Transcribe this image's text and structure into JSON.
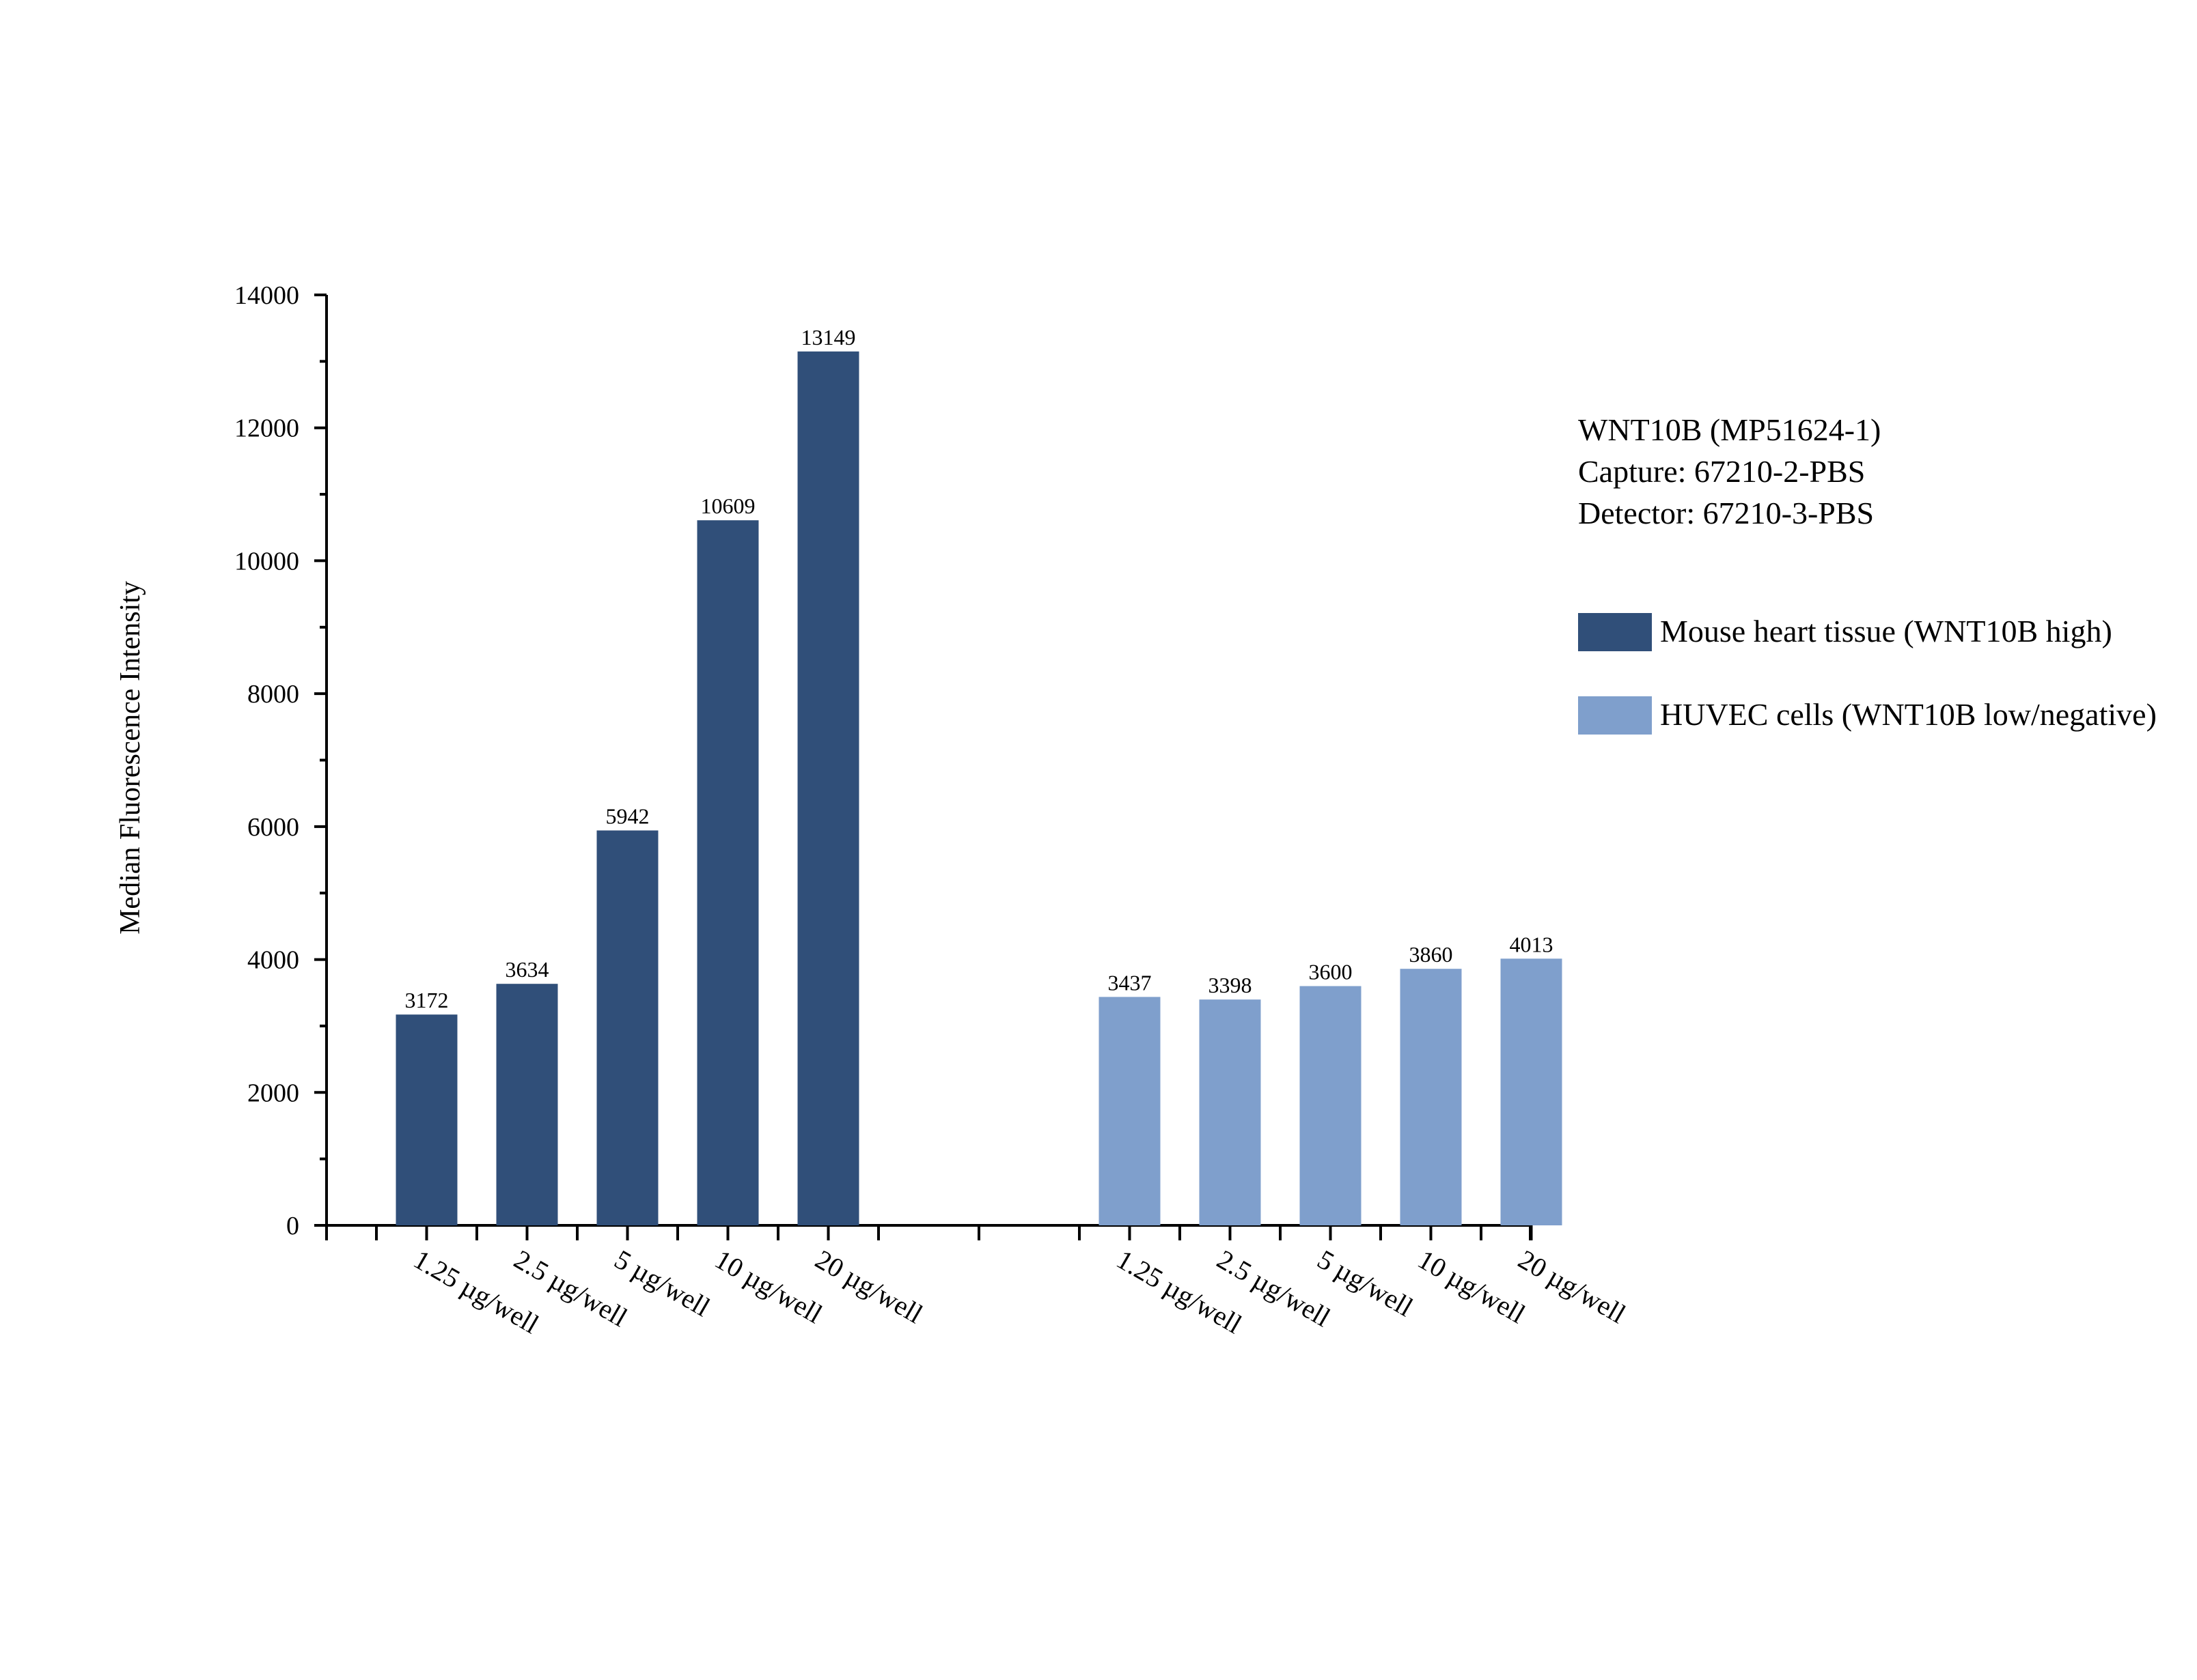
{
  "chart_data": {
    "type": "bar",
    "ylabel": "Median Fluorescence Intensity",
    "xlabel": "",
    "ylim": [
      0,
      14000
    ],
    "y_ticks": [
      0,
      2000,
      4000,
      6000,
      8000,
      10000,
      12000,
      14000
    ],
    "grid": false,
    "legend_position": "right",
    "info_lines": [
      "WNT10B (MP51624-1)",
      "Capture: 67210-2-PBS",
      "Detector: 67210-3-PBS"
    ],
    "categories": [
      "1.25 µg/well",
      "2.5 µg/well",
      "5 µg/well",
      "10 µg/well",
      "20 µg/well"
    ],
    "series": [
      {
        "name": "Mouse heart tissue (WNT10B high)",
        "color": "#304f79",
        "values": [
          3172,
          3634,
          5942,
          10609,
          13149
        ]
      },
      {
        "name": "HUVEC cells (WNT10B low/negative)",
        "color": "#7f9fcc",
        "values": [
          3437,
          3398,
          3600,
          3860,
          4013
        ]
      }
    ]
  }
}
